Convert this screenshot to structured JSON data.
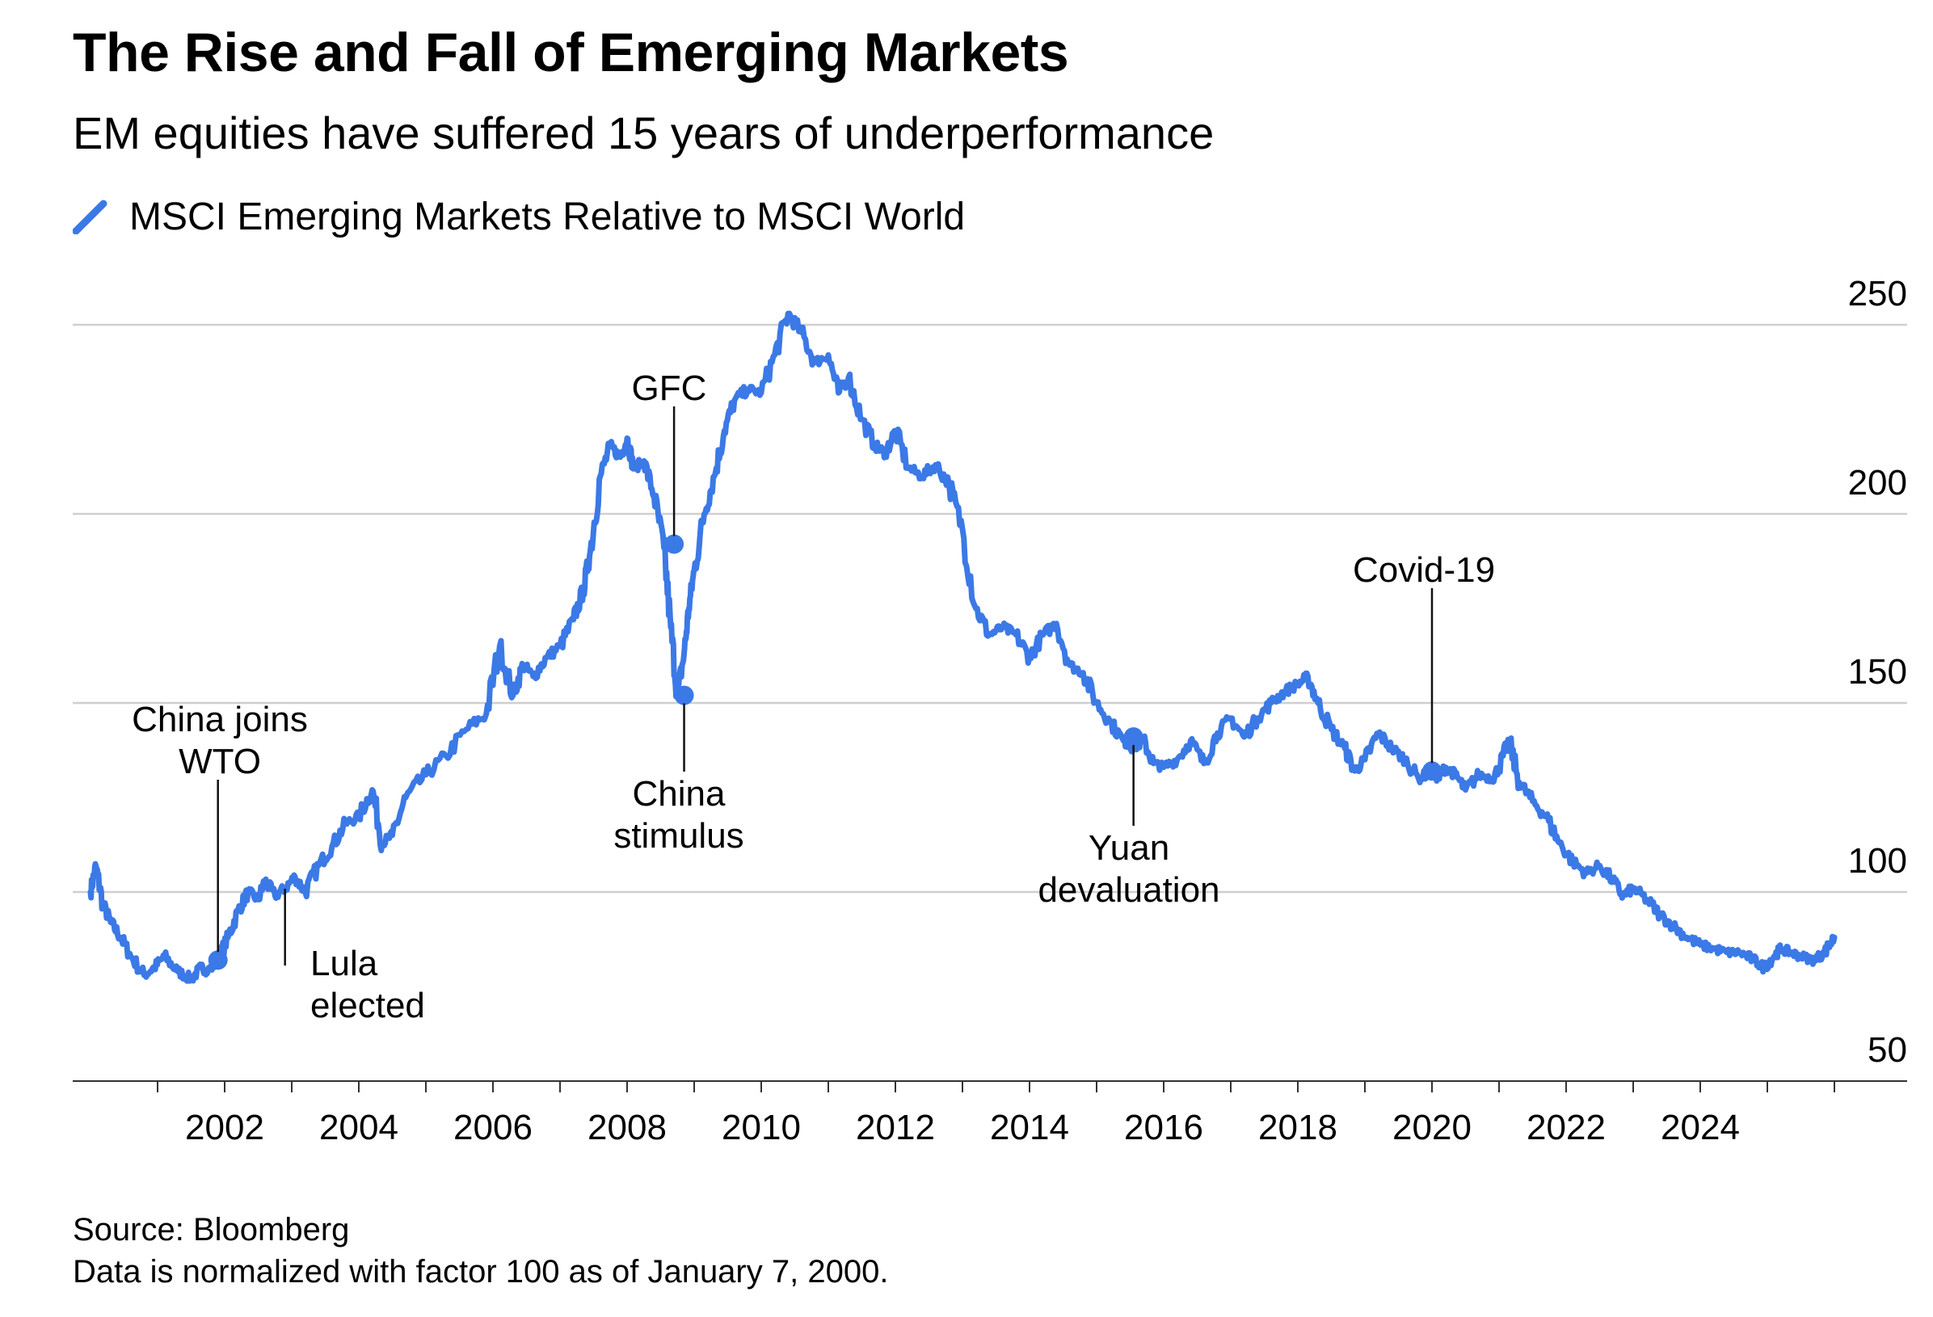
{
  "chart_data": {
    "type": "line",
    "title": "The Rise and Fall of Emerging Markets",
    "subtitle": "EM equities have suffered 15 years of underperformance",
    "legend": {
      "position": "top-left",
      "entries": [
        "MSCI Emerging Markets Relative to MSCI World"
      ]
    },
    "color": "#3b79e6",
    "xlim": [
      2000.0,
      2026.3
    ],
    "ylim": [
      50,
      250
    ],
    "y_ticks": [
      50,
      100,
      150,
      200,
      250
    ],
    "x_ticks": [
      2002,
      2004,
      2006,
      2008,
      2010,
      2012,
      2014,
      2016,
      2018,
      2020,
      2022,
      2024
    ],
    "grid": true,
    "series": [
      {
        "name": "MSCI Emerging Markets Relative to MSCI World",
        "x": [
          2000.0,
          2000.08,
          2000.18,
          2000.3,
          2000.45,
          2000.6,
          2000.8,
          2000.95,
          2001.1,
          2001.3,
          2001.5,
          2001.65,
          2001.75,
          2001.9,
          2002.05,
          2002.2,
          2002.35,
          2002.5,
          2002.6,
          2002.75,
          2002.9,
          2003.05,
          2003.2,
          2003.4,
          2003.6,
          2003.8,
          2004.0,
          2004.2,
          2004.35,
          2004.5,
          2004.7,
          2005.0,
          2005.3,
          2005.6,
          2005.9,
          2006.1,
          2006.3,
          2006.45,
          2006.6,
          2006.8,
          2007.0,
          2007.2,
          2007.35,
          2007.45,
          2007.6,
          2007.75,
          2007.9,
          2008.0,
          2008.1,
          2008.25,
          2008.4,
          2008.55,
          2008.65,
          2008.75,
          2008.85,
          2008.92,
          2009.0,
          2009.15,
          2009.3,
          2009.45,
          2009.6,
          2009.8,
          2010.0,
          2010.2,
          2010.4,
          2010.6,
          2010.8,
          2011.0,
          2011.15,
          2011.3,
          2011.5,
          2011.7,
          2011.85,
          2012.0,
          2012.2,
          2012.4,
          2012.6,
          2012.8,
          2013.0,
          2013.2,
          2013.4,
          2013.6,
          2013.8,
          2014.0,
          2014.2,
          2014.4,
          2014.6,
          2014.8,
          2015.0,
          2015.2,
          2015.4,
          2015.55,
          2015.7,
          2015.85,
          2016.0,
          2016.2,
          2016.4,
          2016.6,
          2016.8,
          2017.0,
          2017.2,
          2017.4,
          2017.6,
          2017.8,
          2018.0,
          2018.15,
          2018.3,
          2018.5,
          2018.7,
          2018.85,
          2019.0,
          2019.2,
          2019.4,
          2019.6,
          2019.8,
          2020.0,
          2020.1,
          2020.2,
          2020.35,
          2020.5,
          2020.7,
          2020.9,
          2021.0,
          2021.15,
          2021.3,
          2021.5,
          2021.7,
          2021.9,
          2022.1,
          2022.3,
          2022.5,
          2022.7,
          2022.85,
          2023.0,
          2023.2,
          2023.4,
          2023.6,
          2023.8,
          2024.0,
          2024.2,
          2024.4,
          2024.6,
          2024.8,
          2024.95,
          2025.1,
          2025.2,
          2025.35,
          2025.5,
          2025.7,
          2025.85,
          2026.0
        ],
        "y": [
          100,
          107,
          97,
          92,
          88,
          83,
          78,
          80,
          83,
          79,
          77,
          80,
          79,
          82,
          88,
          95,
          100,
          98,
          103,
          99,
          101,
          104,
          100,
          107,
          112,
          118,
          120,
          127,
          113,
          115,
          125,
          131,
          136,
          143,
          147,
          165,
          152,
          160,
          157,
          162,
          165,
          172,
          180,
          190,
          210,
          218,
          215,
          220,
          212,
          214,
          205,
          191,
          170,
          152,
          163,
          175,
          185,
          200,
          210,
          222,
          230,
          233,
          232,
          242,
          253,
          248,
          240,
          242,
          232,
          236,
          225,
          218,
          216,
          222,
          212,
          210,
          213,
          208,
          196,
          175,
          168,
          170,
          168,
          162,
          168,
          171,
          160,
          158,
          150,
          145,
          140,
          138,
          140,
          134,
          133,
          135,
          140,
          134,
          142,
          146,
          141,
          146,
          150,
          153,
          155,
          157,
          150,
          143,
          138,
          132,
          135,
          142,
          138,
          135,
          130,
          132,
          130,
          133,
          131,
          127,
          131,
          130,
          133,
          140,
          129,
          124,
          120,
          113,
          108,
          105,
          107,
          103,
          99,
          101,
          98,
          94,
          91,
          88,
          86,
          85,
          84,
          84,
          82,
          80,
          83,
          85,
          84,
          83,
          82,
          84,
          88
        ]
      }
    ],
    "annotations": [
      {
        "label": [
          "China joins",
          "WTO"
        ],
        "x": 2001.9,
        "y": 82
      },
      {
        "label": [
          "Lula",
          "elected"
        ],
        "x": 2002.9,
        "y": 100
      },
      {
        "label": [
          "GFC"
        ],
        "x": 2008.7,
        "y": 192
      },
      {
        "label": [
          "China",
          "stimulus"
        ],
        "x": 2008.85,
        "y": 152
      },
      {
        "label": [
          "Yuan",
          "devaluation"
        ],
        "x": 2015.55,
        "y": 141
      },
      {
        "label": [
          "Covid-19"
        ],
        "x": 2020.0,
        "y": 132
      }
    ]
  },
  "source": "Source: Bloomberg",
  "note": "Data is normalized with factor 100 as of January 7, 2000."
}
